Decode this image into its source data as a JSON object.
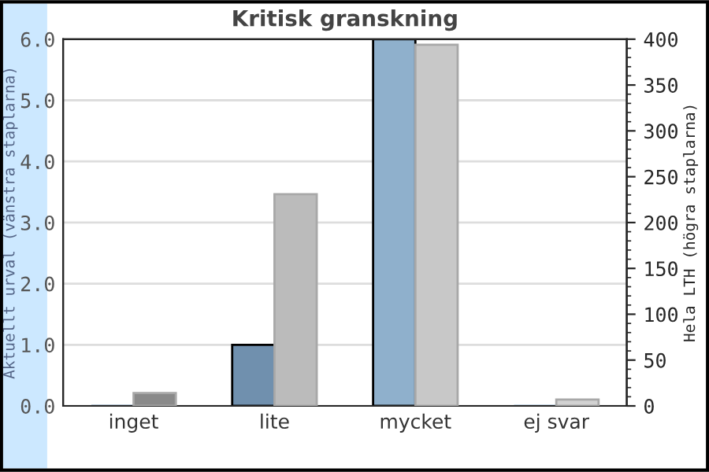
{
  "chart_data": {
    "type": "bar",
    "title": "Kritisk granskning",
    "ylabel": "Aktuellt urval (vänstra staplarna)",
    "y2label": "Hela LTH (högra staplarna)",
    "categories": [
      "inget",
      "lite",
      "mycket",
      "ej svar"
    ],
    "series": [
      {
        "colors": [
          "#7090ae",
          "#7090ae",
          "#8fb0cc",
          "#8fb0cc"
        ],
        "values": [
          0,
          1.0,
          6.0,
          0
        ]
      },
      {
        "axis": "y2",
        "colors": [
          "#8a8a8a",
          "#bbbbbb",
          "#c8c8c8",
          "#d2d2d2"
        ],
        "values": [
          14,
          231,
          394,
          7
        ]
      }
    ],
    "ylim": [
      0,
      6
    ],
    "yticks": [
      {
        "value": 0,
        "label": "0.0"
      },
      {
        "value": 1,
        "label": "1.0"
      },
      {
        "value": 2,
        "label": "2.0"
      },
      {
        "value": 3,
        "label": "3.0"
      },
      {
        "value": 4,
        "label": "4.0"
      },
      {
        "value": 5,
        "label": "5.0"
      },
      {
        "value": 6,
        "label": "6.0"
      }
    ],
    "y2lim": [
      0,
      400
    ],
    "y2ticks": [
      0,
      50,
      100,
      150,
      200,
      250,
      300,
      350,
      400
    ],
    "grid": "y",
    "legend": false
  }
}
